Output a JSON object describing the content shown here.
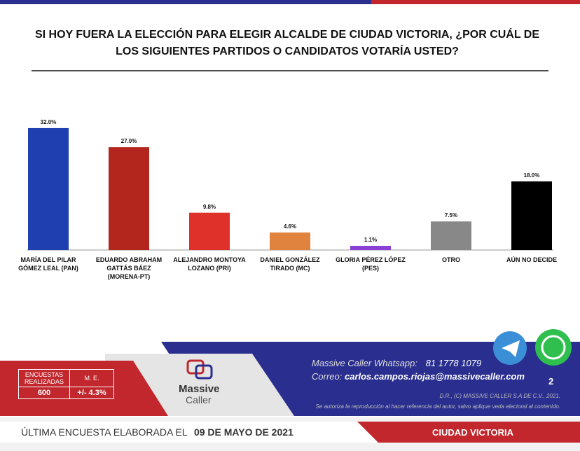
{
  "chart_data": {
    "type": "bar",
    "title": "SI HOY FUERA LA ELECCIÓN PARA ELEGIR ALCALDE DE CIUDAD VICTORIA, ¿POR CUÁL DE LOS SIGUIENTES PARTIDOS O CANDIDATOS VOTARÍA USTED?",
    "categories": [
      "MARÍA DEL PILAR GÓMEZ LEAL (PAN)",
      "EDUARDO ABRAHAM GATTÁS BÁEZ (MORENA-PT)",
      "ALEJANDRO MONTOYA LOZANO (PRI)",
      "DANIEL GONZÁLEZ TIRADO (MC)",
      "GLORIA PÉREZ LÓPEZ (PES)",
      "OTRO",
      "AÚN NO DECIDE"
    ],
    "values": [
      32.0,
      27.0,
      9.8,
      4.6,
      1.1,
      7.5,
      18.0
    ],
    "value_labels": [
      "32.0%",
      "27.0%",
      "9.8%",
      "4.6%",
      "1.1%",
      "7.5%",
      "18.0%"
    ],
    "colors": [
      "#1f3fb0",
      "#b3261e",
      "#e0302a",
      "#e0833e",
      "#8a3fd6",
      "#888888",
      "#000000"
    ]
  },
  "stats": {
    "headers": [
      "ENCUESTAS REALIZADAS",
      "M. E."
    ],
    "values": [
      "600",
      "+/- 4.3%"
    ]
  },
  "logo": {
    "line1": "Massive",
    "line2": "Caller"
  },
  "contact": {
    "whatsapp_label": "Massive Caller Whatsapp:",
    "whatsapp": "81 1778 1079",
    "email_label": "Correo:",
    "email": "carlos.campos.riojas@massivecaller.com"
  },
  "page_number": "2",
  "copyright": "D.R., (C) MASSIVE CALLER S.A DE C.V., 2021.",
  "notice": "Se autoriza la reproducción al hacer referencia del autor, salvo aplique veda electoral al contenido.",
  "footer": {
    "label": "ÚLTIMA ENCUESTA ELABORADA EL",
    "date": "09 DE MAYO DE 2021",
    "city": "CIUDAD VICTORIA"
  }
}
